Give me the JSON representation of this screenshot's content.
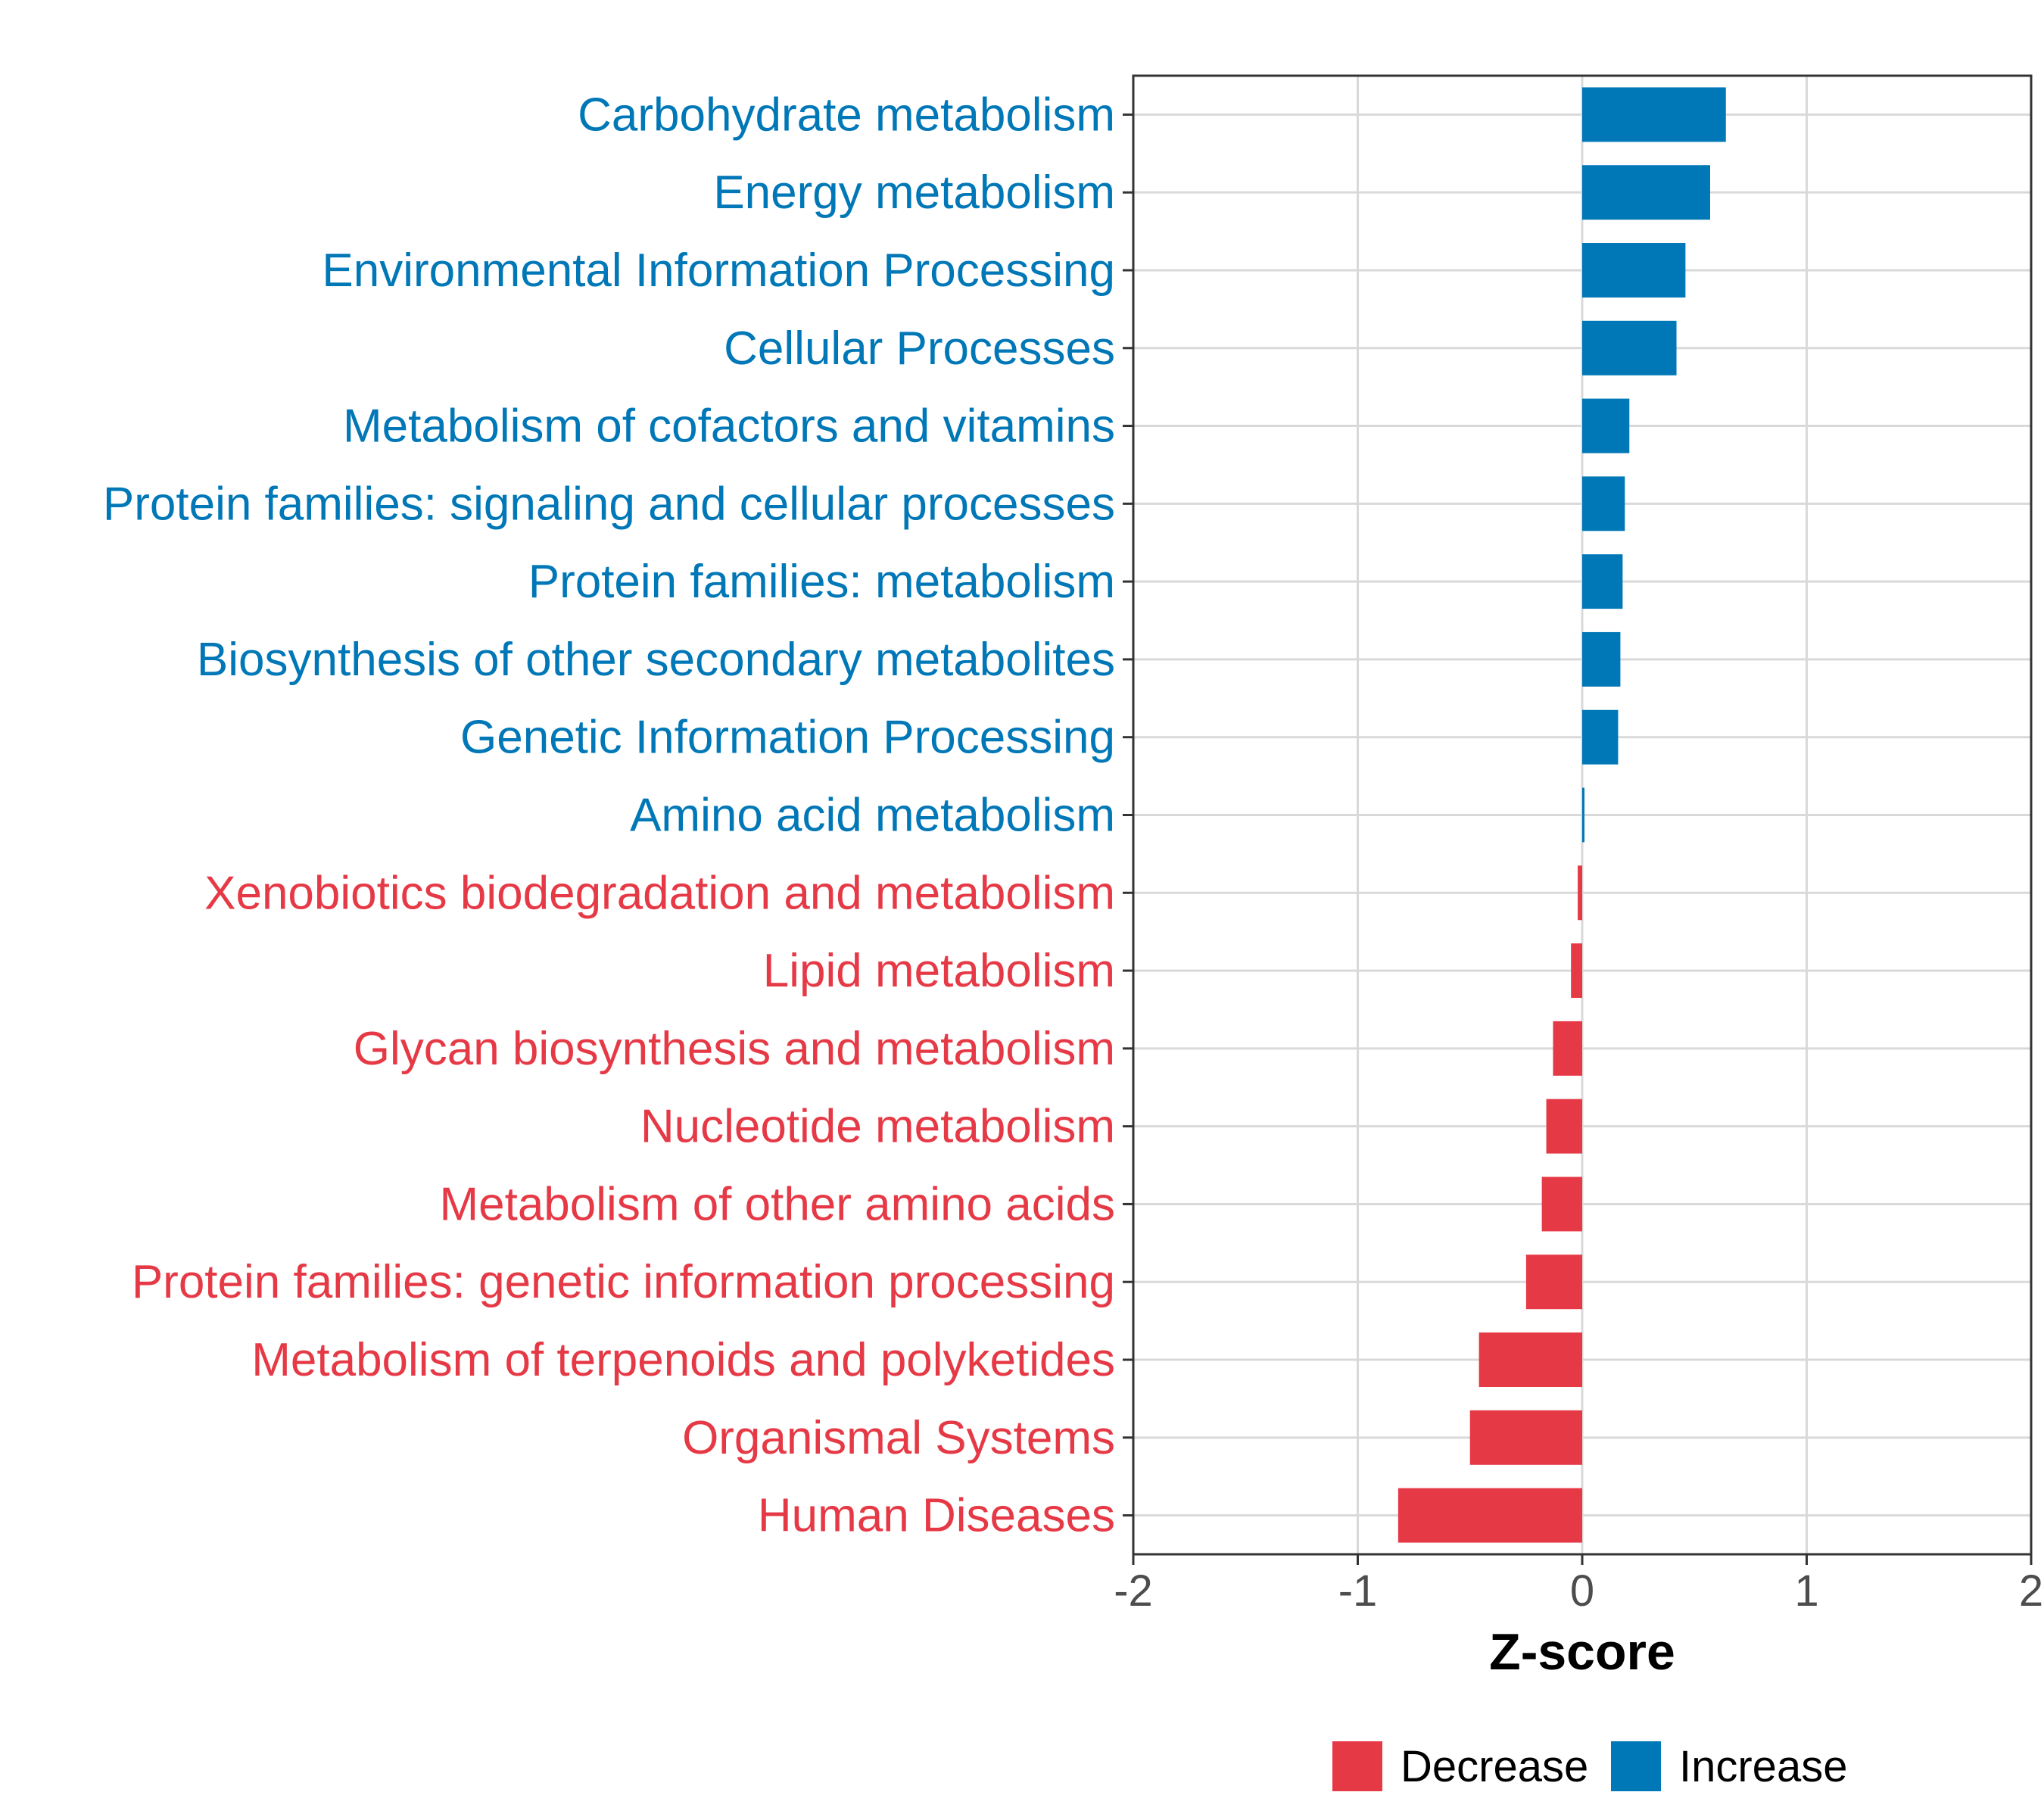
{
  "chart_data": {
    "type": "bar",
    "orientation": "horizontal",
    "title": "",
    "xlabel": "Z-score",
    "ylabel": "",
    "xlim": [
      -2,
      2
    ],
    "xticks": [
      "-2",
      "-1",
      "0",
      "1",
      "2"
    ],
    "grid": true,
    "legend_position": "bottom",
    "colors": {
      "Decrease": "#E63946",
      "Increase": "#0077B6"
    },
    "legend": [
      {
        "label": "Decrease",
        "color": "#E63946"
      },
      {
        "label": "Increase",
        "color": "#0077B6"
      }
    ],
    "categories": [
      "Carbohydrate metabolism",
      "Energy metabolism",
      "Environmental Information Processing",
      "Cellular Processes",
      "Metabolism of cofactors and vitamins",
      "Protein families: signaling and cellular processes",
      "Protein families: metabolism",
      "Biosynthesis of other secondary metabolites",
      "Genetic Information Processing",
      "Amino acid metabolism",
      "Xenobiotics biodegradation and metabolism",
      "Lipid metabolism",
      "Glycan biosynthesis and metabolism",
      "Nucleotide metabolism",
      "Metabolism of other amino acids",
      "Protein families: genetic information processing",
      "Metabolism of terpenoids and polyketides",
      "Organismal Systems",
      "Human Diseases"
    ],
    "values": [
      0.64,
      0.57,
      0.46,
      0.42,
      0.21,
      0.19,
      0.18,
      0.17,
      0.16,
      0.01,
      -0.02,
      -0.05,
      -0.13,
      -0.16,
      -0.18,
      -0.25,
      -0.46,
      -0.5,
      -0.82
    ],
    "groups": [
      "Increase",
      "Increase",
      "Increase",
      "Increase",
      "Increase",
      "Increase",
      "Increase",
      "Increase",
      "Increase",
      "Increase",
      "Decrease",
      "Decrease",
      "Decrease",
      "Decrease",
      "Decrease",
      "Decrease",
      "Decrease",
      "Decrease",
      "Decrease"
    ]
  }
}
